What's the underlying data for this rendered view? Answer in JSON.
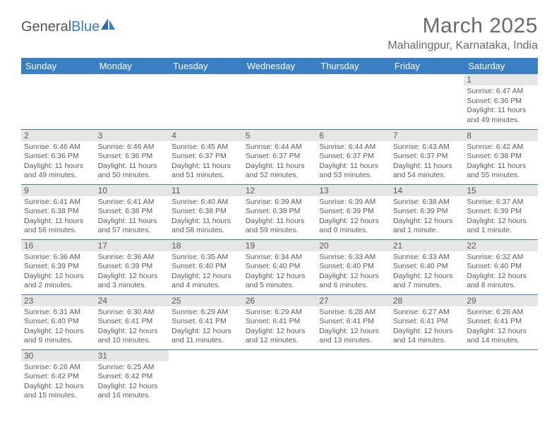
{
  "logo": {
    "text1": "General",
    "text2": "Blue"
  },
  "title": "March 2025",
  "location": "Mahalingpur, Karnataka, India",
  "weekdays": [
    "Sunday",
    "Monday",
    "Tuesday",
    "Wednesday",
    "Thursday",
    "Friday",
    "Saturday"
  ],
  "colors": {
    "header_bg": "#3a7fc4",
    "header_text": "#ffffff",
    "daynum_bg": "#e6e6e6",
    "text": "#5a5a5a",
    "border": "#3a7fc4"
  },
  "weeks": [
    [
      null,
      null,
      null,
      null,
      null,
      null,
      {
        "n": "1",
        "sunrise": "6:47 AM",
        "sunset": "6:36 PM",
        "daylight": "11 hours and 49 minutes."
      }
    ],
    [
      {
        "n": "2",
        "sunrise": "6:46 AM",
        "sunset": "6:36 PM",
        "daylight": "11 hours and 49 minutes."
      },
      {
        "n": "3",
        "sunrise": "6:46 AM",
        "sunset": "6:36 PM",
        "daylight": "11 hours and 50 minutes."
      },
      {
        "n": "4",
        "sunrise": "6:45 AM",
        "sunset": "6:37 PM",
        "daylight": "11 hours and 51 minutes."
      },
      {
        "n": "5",
        "sunrise": "6:44 AM",
        "sunset": "6:37 PM",
        "daylight": "11 hours and 52 minutes."
      },
      {
        "n": "6",
        "sunrise": "6:44 AM",
        "sunset": "6:37 PM",
        "daylight": "11 hours and 53 minutes."
      },
      {
        "n": "7",
        "sunrise": "6:43 AM",
        "sunset": "6:37 PM",
        "daylight": "11 hours and 54 minutes."
      },
      {
        "n": "8",
        "sunrise": "6:42 AM",
        "sunset": "6:38 PM",
        "daylight": "11 hours and 55 minutes."
      }
    ],
    [
      {
        "n": "9",
        "sunrise": "6:41 AM",
        "sunset": "6:38 PM",
        "daylight": "11 hours and 56 minutes."
      },
      {
        "n": "10",
        "sunrise": "6:41 AM",
        "sunset": "6:38 PM",
        "daylight": "11 hours and 57 minutes."
      },
      {
        "n": "11",
        "sunrise": "6:40 AM",
        "sunset": "6:38 PM",
        "daylight": "11 hours and 58 minutes."
      },
      {
        "n": "12",
        "sunrise": "6:39 AM",
        "sunset": "6:38 PM",
        "daylight": "11 hours and 59 minutes."
      },
      {
        "n": "13",
        "sunrise": "6:39 AM",
        "sunset": "6:39 PM",
        "daylight": "12 hours and 0 minutes."
      },
      {
        "n": "14",
        "sunrise": "6:38 AM",
        "sunset": "6:39 PM",
        "daylight": "12 hours and 1 minute."
      },
      {
        "n": "15",
        "sunrise": "6:37 AM",
        "sunset": "6:39 PM",
        "daylight": "12 hours and 1 minute."
      }
    ],
    [
      {
        "n": "16",
        "sunrise": "6:36 AM",
        "sunset": "6:39 PM",
        "daylight": "12 hours and 2 minutes."
      },
      {
        "n": "17",
        "sunrise": "6:36 AM",
        "sunset": "6:39 PM",
        "daylight": "12 hours and 3 minutes."
      },
      {
        "n": "18",
        "sunrise": "6:35 AM",
        "sunset": "6:40 PM",
        "daylight": "12 hours and 4 minutes."
      },
      {
        "n": "19",
        "sunrise": "6:34 AM",
        "sunset": "6:40 PM",
        "daylight": "12 hours and 5 minutes."
      },
      {
        "n": "20",
        "sunrise": "6:33 AM",
        "sunset": "6:40 PM",
        "daylight": "12 hours and 6 minutes."
      },
      {
        "n": "21",
        "sunrise": "6:33 AM",
        "sunset": "6:40 PM",
        "daylight": "12 hours and 7 minutes."
      },
      {
        "n": "22",
        "sunrise": "6:32 AM",
        "sunset": "6:40 PM",
        "daylight": "12 hours and 8 minutes."
      }
    ],
    [
      {
        "n": "23",
        "sunrise": "6:31 AM",
        "sunset": "6:40 PM",
        "daylight": "12 hours and 9 minutes."
      },
      {
        "n": "24",
        "sunrise": "6:30 AM",
        "sunset": "6:41 PM",
        "daylight": "12 hours and 10 minutes."
      },
      {
        "n": "25",
        "sunrise": "6:29 AM",
        "sunset": "6:41 PM",
        "daylight": "12 hours and 11 minutes."
      },
      {
        "n": "26",
        "sunrise": "6:29 AM",
        "sunset": "6:41 PM",
        "daylight": "12 hours and 12 minutes."
      },
      {
        "n": "27",
        "sunrise": "6:28 AM",
        "sunset": "6:41 PM",
        "daylight": "12 hours and 13 minutes."
      },
      {
        "n": "28",
        "sunrise": "6:27 AM",
        "sunset": "6:41 PM",
        "daylight": "12 hours and 14 minutes."
      },
      {
        "n": "29",
        "sunrise": "6:26 AM",
        "sunset": "6:41 PM",
        "daylight": "12 hours and 14 minutes."
      }
    ],
    [
      {
        "n": "30",
        "sunrise": "6:26 AM",
        "sunset": "6:42 PM",
        "daylight": "12 hours and 15 minutes."
      },
      {
        "n": "31",
        "sunrise": "6:25 AM",
        "sunset": "6:42 PM",
        "daylight": "12 hours and 16 minutes."
      },
      null,
      null,
      null,
      null,
      null
    ]
  ],
  "labels": {
    "sunrise": "Sunrise:",
    "sunset": "Sunset:",
    "daylight": "Daylight:"
  }
}
